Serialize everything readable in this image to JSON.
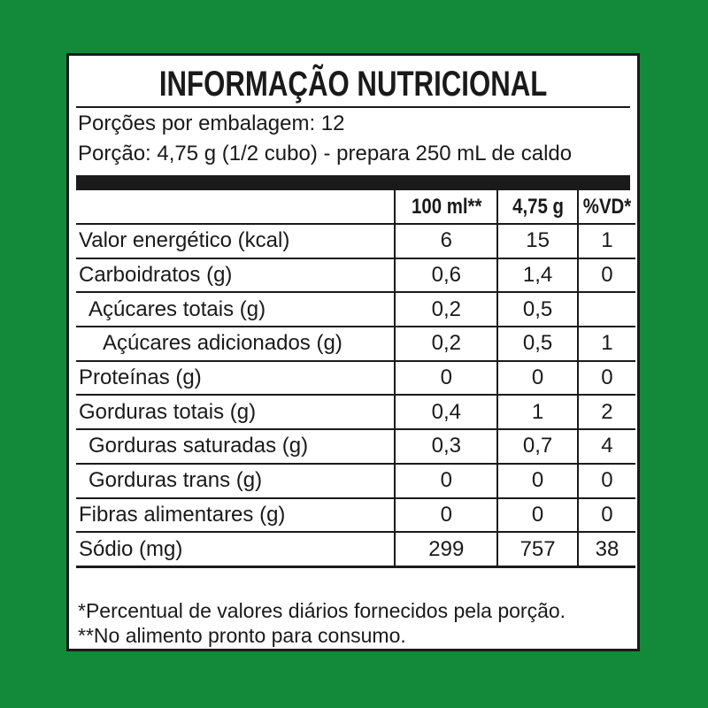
{
  "title": "INFORMAÇÃO NUTRICIONAL",
  "servings_per_package": "Porções por embalagem: 12",
  "serving_size": "Porção: 4,75 g (1/2 cubo) - prepara 250 mL de caldo",
  "columns": [
    "",
    "100 ml**",
    "4,75 g",
    "%VD*"
  ],
  "rows": [
    {
      "label": "Valor energético (kcal)",
      "indent": 0,
      "v100": "6",
      "vportion": "15",
      "vd": "1"
    },
    {
      "label": "Carboidratos (g)",
      "indent": 0,
      "v100": "0,6",
      "vportion": "1,4",
      "vd": "0"
    },
    {
      "label": "Açúcares totais (g)",
      "indent": 1,
      "v100": "0,2",
      "vportion": "0,5",
      "vd": ""
    },
    {
      "label": "Açúcares adicionados (g)",
      "indent": 2,
      "v100": "0,2",
      "vportion": "0,5",
      "vd": "1"
    },
    {
      "label": "Proteínas (g)",
      "indent": 0,
      "v100": "0",
      "vportion": "0",
      "vd": "0"
    },
    {
      "label": "Gorduras totais (g)",
      "indent": 0,
      "v100": "0,4",
      "vportion": "1",
      "vd": "2"
    },
    {
      "label": "Gorduras saturadas (g)",
      "indent": 1,
      "v100": "0,3",
      "vportion": "0,7",
      "vd": "4"
    },
    {
      "label": "Gorduras trans (g)",
      "indent": 1,
      "v100": "0",
      "vportion": "0",
      "vd": "0"
    },
    {
      "label": "Fibras alimentares (g)",
      "indent": 0,
      "v100": "0",
      "vportion": "0",
      "vd": "0"
    },
    {
      "label": "Sódio (mg)",
      "indent": 0,
      "v100": "299",
      "vportion": "757",
      "vd": "38"
    }
  ],
  "footnotes": [
    "*Percentual de valores diários fornecidos pela porção.",
    "**No alimento pronto para consumo."
  ],
  "colors": {
    "background": "#138a3a",
    "panel": "#ffffff",
    "ink": "#1a1a1a"
  }
}
